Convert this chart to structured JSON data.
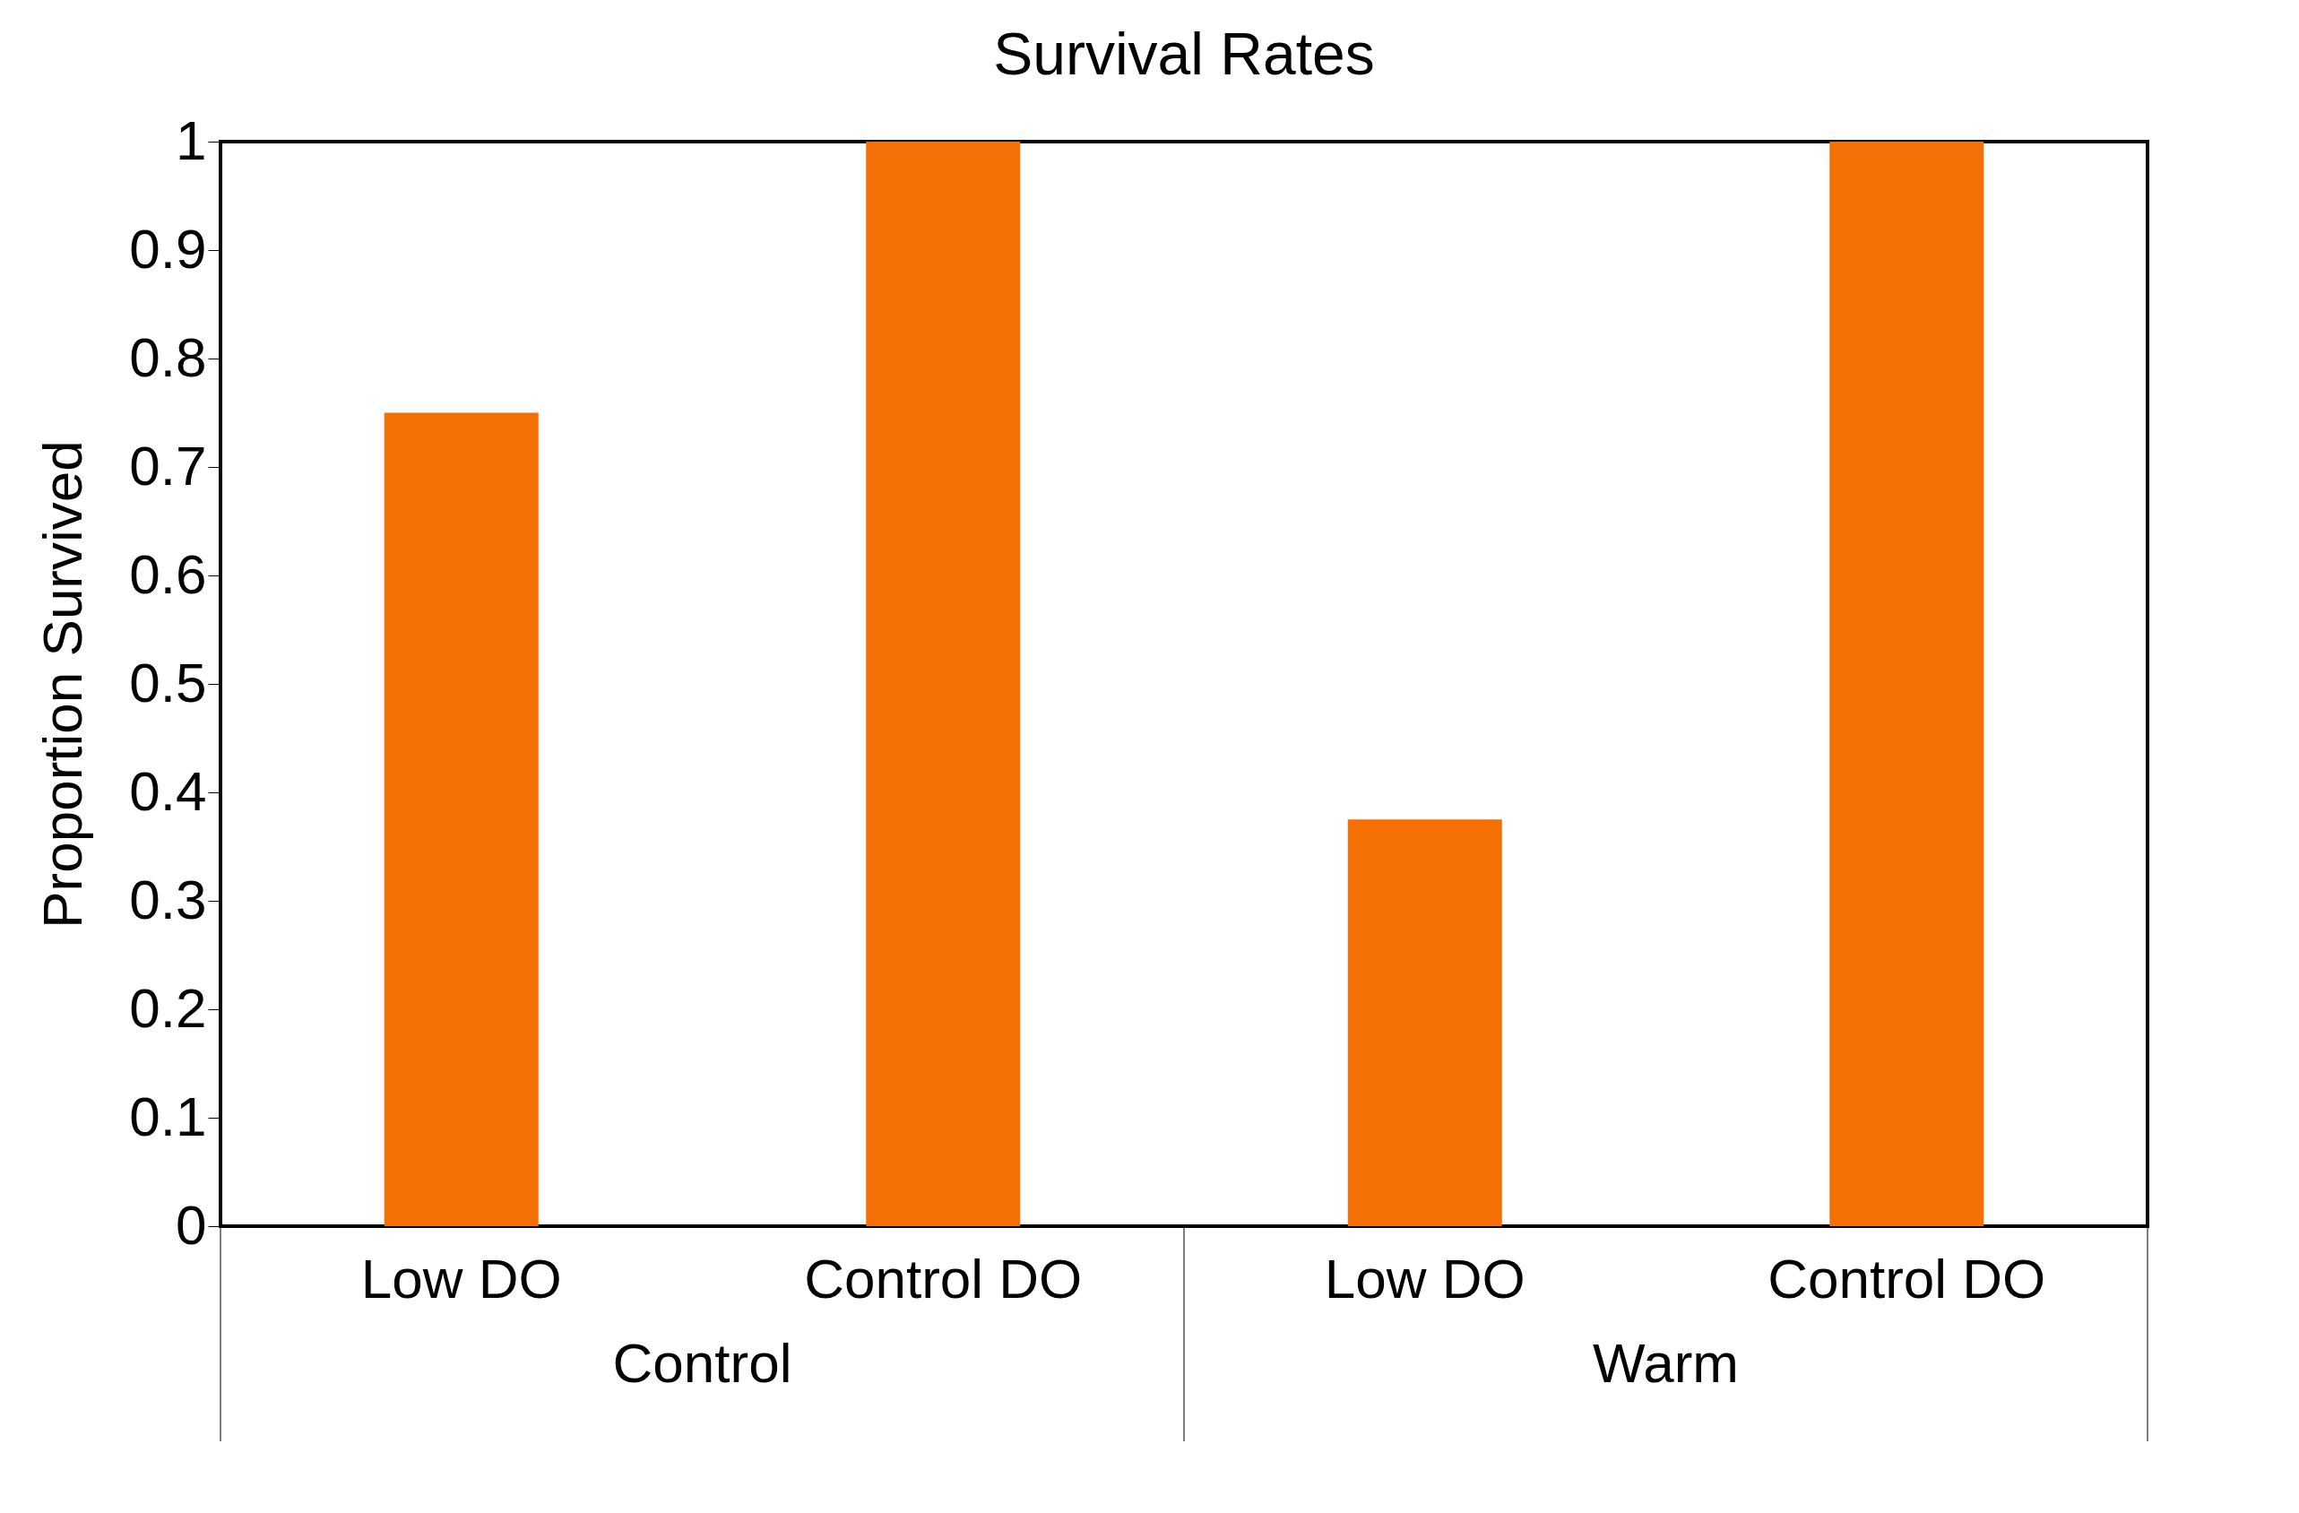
{
  "chart_data": {
    "type": "bar",
    "title": "Survival Rates",
    "ylabel": "Proportion Survived",
    "categories": [
      "Low DO",
      "Control DO",
      "Low DO",
      "Control DO"
    ],
    "values": [
      0.75,
      1,
      0.375,
      1
    ],
    "color": "#f47005",
    "ylim": [
      0,
      1
    ],
    "yticks": [
      0,
      0.1,
      0.2,
      0.3,
      0.4,
      0.5,
      0.6,
      0.7,
      0.8,
      0.9,
      1
    ],
    "grid": false,
    "annotations": [
      "Control",
      "Warm"
    ]
  }
}
